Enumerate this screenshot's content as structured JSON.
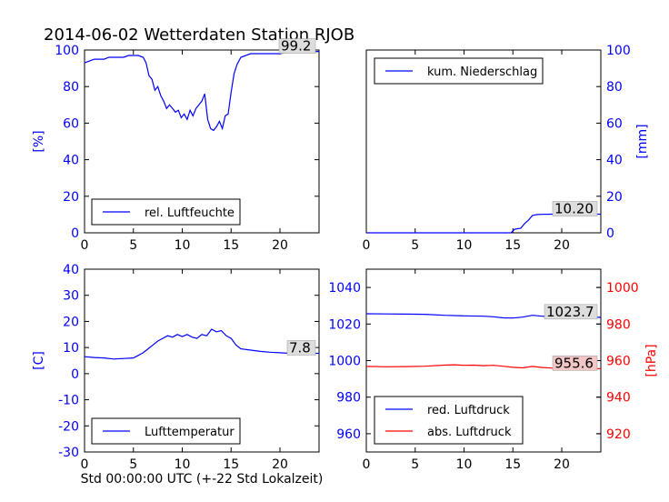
{
  "title": "2014-06-02 Wetterdaten Station RJOB",
  "xlabel": "Std 00:00:00 UTC (+-22 Std Lokalzeit)",
  "colors": {
    "blue": "#0000ff",
    "red": "#ff0000",
    "ann_box": "#dddddd",
    "ann_box_red": "#f2c6c6"
  },
  "chart_data": [
    {
      "type": "line",
      "panel": "top-left",
      "xlim": [
        0,
        24
      ],
      "xticks": [
        0,
        5,
        10,
        15,
        20
      ],
      "ylim": [
        0,
        100
      ],
      "yticks": [
        0,
        20,
        40,
        60,
        80,
        100
      ],
      "ylabel": "[%]",
      "legend_loc": "lower-center",
      "annotation": "99.2",
      "series": [
        {
          "name": "rel. Luftfeuchte",
          "color": "#0000ff",
          "x": [
            0,
            0.5,
            1,
            1.5,
            2,
            2.5,
            3,
            3.5,
            4,
            4.5,
            5,
            5.5,
            6,
            6.3,
            6.6,
            6.9,
            7.2,
            7.5,
            7.8,
            8.1,
            8.4,
            8.7,
            9.0,
            9.3,
            9.6,
            9.9,
            10.2,
            10.5,
            10.8,
            11.1,
            11.4,
            11.7,
            12.0,
            12.3,
            12.6,
            12.9,
            13.2,
            13.5,
            13.8,
            14.1,
            14.4,
            14.7,
            15.0,
            15.3,
            15.6,
            16.0,
            16.5,
            17,
            18,
            19,
            20,
            21,
            22,
            23,
            24
          ],
          "y": [
            93,
            94,
            95,
            95,
            95,
            96,
            96,
            96,
            96,
            97,
            97,
            97,
            96,
            93,
            86,
            84,
            78,
            80,
            75,
            72,
            68,
            70,
            68,
            66,
            67,
            63,
            65,
            62,
            67,
            64,
            68,
            70,
            72,
            76,
            62,
            57,
            56,
            58,
            61,
            57,
            64,
            65,
            77,
            87,
            92,
            96,
            97,
            98,
            98,
            98,
            98,
            99,
            99,
            99,
            99.2
          ]
        }
      ]
    },
    {
      "type": "line",
      "panel": "top-right",
      "xlim": [
        0,
        24
      ],
      "xticks": [
        0,
        5,
        10,
        15,
        20
      ],
      "ylim": [
        0,
        100
      ],
      "yticks": [
        0,
        20,
        40,
        60,
        80,
        100
      ],
      "ylabel": "[mm]",
      "legend_loc": "upper-left",
      "annotation": "10.20",
      "series": [
        {
          "name": "kum. Niederschlag",
          "color": "#0000ff",
          "x": [
            0,
            5,
            10,
            14.8,
            15.2,
            15.8,
            16.2,
            16.6,
            17.0,
            17.5,
            18,
            19,
            20,
            21,
            22,
            23,
            24
          ],
          "y": [
            0,
            0,
            0,
            0,
            2,
            2.5,
            5,
            7,
            9.5,
            10,
            10.1,
            10.2,
            10.2,
            10.2,
            10.2,
            10.2,
            10.2
          ]
        }
      ]
    },
    {
      "type": "line",
      "panel": "bottom-left",
      "xlim": [
        0,
        24
      ],
      "xticks": [
        0,
        5,
        10,
        15,
        20
      ],
      "ylim": [
        -30,
        40
      ],
      "yticks": [
        -30,
        -20,
        -10,
        0,
        10,
        20,
        30,
        40
      ],
      "ylabel": "[C]",
      "legend_loc": "lower-center",
      "annotation": "7.8",
      "series": [
        {
          "name": "Lufttemperatur",
          "color": "#0000ff",
          "x": [
            0,
            1,
            2,
            3,
            4,
            5,
            5.5,
            6,
            6.5,
            7,
            7.5,
            8,
            8.5,
            9,
            9.5,
            10,
            10.5,
            11,
            11.5,
            12,
            12.5,
            13,
            13.5,
            14,
            14.5,
            15,
            15.5,
            16,
            17,
            18,
            19,
            20,
            21,
            22,
            23,
            24
          ],
          "y": [
            6.5,
            6.2,
            6,
            5.6,
            5.8,
            6,
            7,
            8,
            9.5,
            11,
            12.5,
            13.5,
            14.5,
            14,
            15,
            14.2,
            15,
            14,
            13.5,
            15,
            14.5,
            17,
            16,
            16.5,
            14.5,
            13.5,
            11,
            9.5,
            9,
            8.5,
            8.2,
            8,
            7.8,
            7.8,
            7.8,
            7.8
          ]
        }
      ]
    },
    {
      "type": "line",
      "panel": "bottom-right",
      "xlim": [
        0,
        24
      ],
      "xticks": [
        0,
        5,
        10,
        15,
        20
      ],
      "ylim": [
        950,
        1050
      ],
      "yticks": [
        960,
        980,
        1000,
        1020,
        1040
      ],
      "y2lim": [
        910,
        1010
      ],
      "y2ticks": [
        920,
        940,
        960,
        980,
        1000
      ],
      "y2label": "[hPa]",
      "legend_loc": "lower-left",
      "annotations": [
        "1023.7",
        "955.6"
      ],
      "series": [
        {
          "name": "red. Luftdruck",
          "color": "#0000ff",
          "axis": "left",
          "x": [
            0,
            2,
            4,
            6,
            8,
            10,
            12,
            13,
            14,
            15,
            16,
            17,
            18,
            19,
            20,
            21,
            22,
            23,
            24
          ],
          "y": [
            1025.6,
            1025.5,
            1025.4,
            1025.3,
            1024.8,
            1024.5,
            1024.3,
            1024.0,
            1023.4,
            1023.3,
            1023.8,
            1024.8,
            1024.3,
            1023.9,
            1023.8,
            1023.7,
            1023.7,
            1023.7,
            1023.7
          ]
        },
        {
          "name": "abs. Luftdruck",
          "color": "#ff0000",
          "axis": "right",
          "x": [
            0,
            2,
            4,
            6,
            8,
            9,
            10,
            11,
            12,
            13,
            14,
            15,
            16,
            17,
            18,
            19,
            20,
            21,
            22,
            23,
            24
          ],
          "y": [
            956.8,
            956.6,
            956.7,
            956.9,
            957.5,
            957.7,
            957.4,
            957.5,
            957.2,
            957.4,
            956.9,
            956.3,
            956.0,
            956.8,
            956.2,
            955.9,
            955.8,
            955.7,
            955.6,
            955.6,
            955.6
          ]
        }
      ]
    }
  ]
}
